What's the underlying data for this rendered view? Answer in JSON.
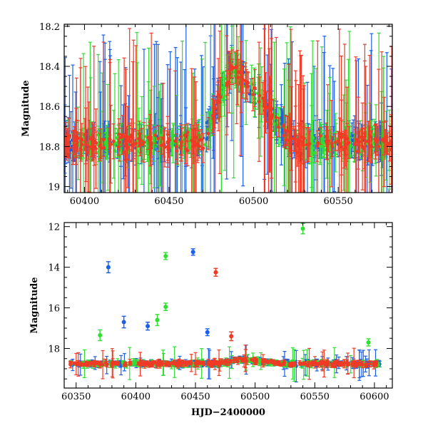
{
  "chart_data": [
    {
      "type": "scatter",
      "title": "",
      "xlabel": "",
      "ylabel": "Magnitude",
      "xlim": [
        60388,
        60582
      ],
      "ylim": [
        18.19,
        19.03
      ],
      "y_inverted": true,
      "grid": false,
      "x_ticks": [
        60400,
        60450,
        60500,
        60550
      ],
      "y_ticks": [
        18.2,
        18.4,
        18.6,
        18.8,
        19
      ],
      "y_tick_labels": [
        "18.2",
        "18.4",
        "18.6",
        "18.8",
        "19"
      ],
      "series": [
        {
          "color": "#1a5fe8",
          "marker": "circle with error bar",
          "x_range": [
            60388,
            60582
          ],
          "baseline_mag": 18.78,
          "peak": {
            "x": 60487,
            "y": 18.4
          }
        },
        {
          "color": "#33dd33",
          "marker": "circle with error bar",
          "x_range": [
            60388,
            60582
          ],
          "baseline_mag": 18.78,
          "peak": {
            "x": 60487,
            "y": 18.4
          }
        },
        {
          "color": "#f03a25",
          "marker": "circle with error bar",
          "x_range": [
            60388,
            60582
          ],
          "baseline_mag": 18.78,
          "peak": {
            "x": 60487,
            "y": 18.4
          }
        }
      ]
    },
    {
      "type": "scatter",
      "title": "",
      "xlabel": "HJD−2400000",
      "ylabel": "Magnitude",
      "xlim": [
        60340,
        60615
      ],
      "ylim": [
        11.8,
        19.95
      ],
      "y_inverted": true,
      "grid": false,
      "x_ticks": [
        60350,
        60400,
        60450,
        60500,
        60550,
        60600
      ],
      "y_ticks": [
        12,
        14,
        16,
        18
      ],
      "y_tick_labels": [
        "12",
        "14",
        "16",
        "18"
      ],
      "series": [
        {
          "color": "#1a5fe8",
          "marker": "circle with error bar",
          "x_range": [
            60345,
            60605
          ],
          "baseline_mag": 18.75,
          "outliers": [
            [
              60377,
              14.0
            ],
            [
              60448,
              13.25
            ],
            [
              60390,
              16.7
            ],
            [
              60410,
              16.9
            ],
            [
              60460,
              17.2
            ]
          ]
        },
        {
          "color": "#33dd33",
          "marker": "circle with error bar",
          "x_range": [
            60345,
            60605
          ],
          "baseline_mag": 18.75,
          "outliers": [
            [
              60425,
              13.45
            ],
            [
              60425,
              15.95
            ],
            [
              60540,
              12.1
            ],
            [
              60370,
              17.35
            ],
            [
              60418,
              16.6
            ],
            [
              60595,
              17.7
            ]
          ]
        },
        {
          "color": "#f03a25",
          "marker": "circle with error bar",
          "x_range": [
            60345,
            60605
          ],
          "baseline_mag": 18.75,
          "outliers": [
            [
              60467,
              14.25
            ],
            [
              60480,
              17.4
            ]
          ]
        }
      ]
    }
  ]
}
